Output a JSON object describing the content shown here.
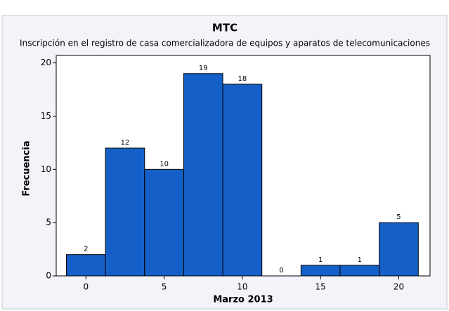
{
  "chart_data": {
    "type": "histogram",
    "title": "MTC",
    "subtitle": "Inscripción en el registro de casa comercializadora de equipos y aparatos de telecomunicaciones",
    "x_label": "Marzo 2013",
    "y_label": "Frecuencia",
    "bins": [
      -1.25,
      1.25,
      3.75,
      6.25,
      8.75,
      11.25,
      13.75,
      16.25,
      18.75,
      21.25
    ],
    "values": [
      2,
      12,
      10,
      19,
      18,
      0,
      1,
      1,
      5
    ],
    "color": "#1560c8",
    "xlim": [
      -1.9,
      22
    ],
    "ylim": [
      0,
      20.7
    ],
    "xticks": [
      0,
      5,
      10,
      15,
      20
    ],
    "yticks": [
      0,
      5,
      10,
      15,
      20
    ]
  }
}
